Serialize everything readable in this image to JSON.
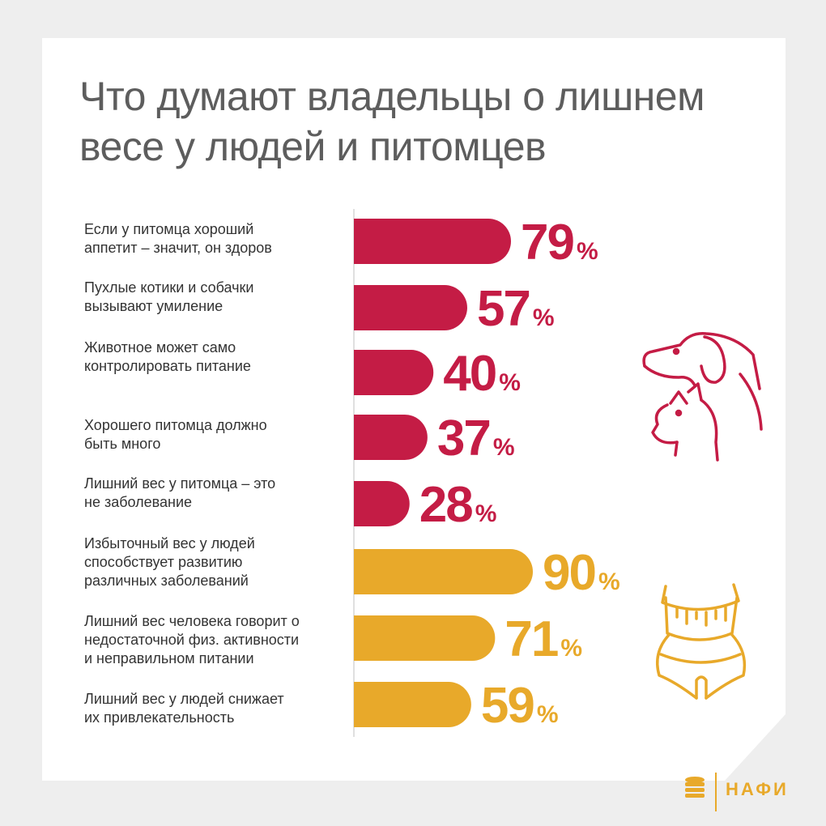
{
  "title": "Что думают владельцы о лишнем весе у людей и питомцев",
  "colors": {
    "pets": "#c41c45",
    "people": "#e8a92a",
    "card": "#ffffff",
    "background": "#eeeeee",
    "title": "#5d5d5d",
    "text": "#333333"
  },
  "icons": {
    "pets": "dog-and-cat-icon",
    "people": "waist-measuring-tape-icon",
    "logo": "coin-stack-icon"
  },
  "logo": {
    "text": "НАФИ"
  },
  "chart_data": {
    "type": "bar",
    "orientation": "horizontal",
    "value_suffix": "%",
    "categories": [
      "Если у питомца хороший аппетит – значит, он здоров",
      "Пухлые котики и собачки вызывают умиление",
      "Животное может само контролировать питание",
      "Хорошего питомца должно быть много",
      "Лишний вес у питомца – это не заболевание",
      "Избыточный вес у людей способствует развитию различных заболеваний",
      "Лишний вес человека говорит о недостаточной физ. активности и неправильном питании",
      "Лишний вес у людей снижает их привлекательность"
    ],
    "label_lines": [
      [
        "Если у питомца хороший",
        "аппетит – значит, он здоров"
      ],
      [
        "Пухлые котики и собачки",
        "вызывают умиление"
      ],
      [
        "Животное может само",
        "контролировать питание"
      ],
      [
        "Хорошего питомца должно",
        "быть много"
      ],
      [
        "Лишний вес у питомца – это",
        "не заболевание"
      ],
      [
        "Избыточный вес у людей",
        "способствует развитию",
        "различных заболеваний"
      ],
      [
        "Лишний вес человека говорит о",
        "недостаточной физ. активности",
        "и неправильном питании"
      ],
      [
        "Лишний вес у людей снижает",
        "их привлекательность"
      ]
    ],
    "values": [
      79,
      57,
      40,
      37,
      28,
      90,
      71,
      59
    ],
    "groups": [
      "pets",
      "pets",
      "pets",
      "pets",
      "pets",
      "people",
      "people",
      "people"
    ]
  }
}
